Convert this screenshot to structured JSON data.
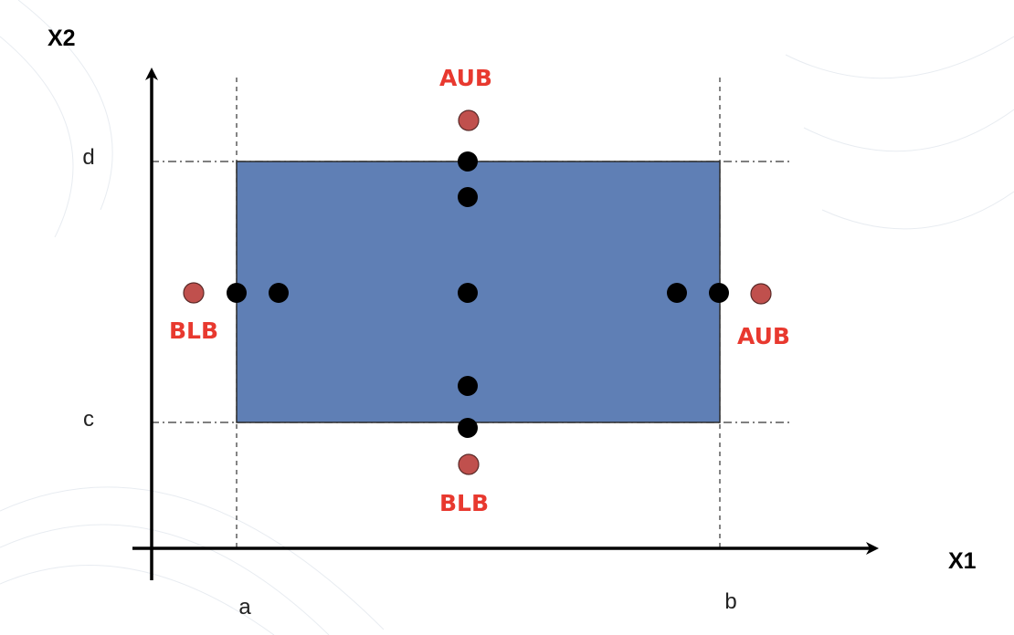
{
  "axes": {
    "x_title": "X1",
    "y_title": "X2",
    "x_ticks": [
      {
        "label": "a"
      },
      {
        "label": "b"
      }
    ],
    "y_ticks": [
      {
        "label": "d"
      },
      {
        "label": "c"
      }
    ]
  },
  "region": {
    "color": "#5f7fb5",
    "border_color": "#2b2b2b"
  },
  "points": {
    "inside_color": "#000000",
    "boundary_outside_color": "#c0504d",
    "labels": {
      "top_outside": "AUB",
      "bottom_outside": "BLB",
      "left_outside": "BLB",
      "right_outside": "AUB"
    },
    "label_color": "#e8392f"
  }
}
